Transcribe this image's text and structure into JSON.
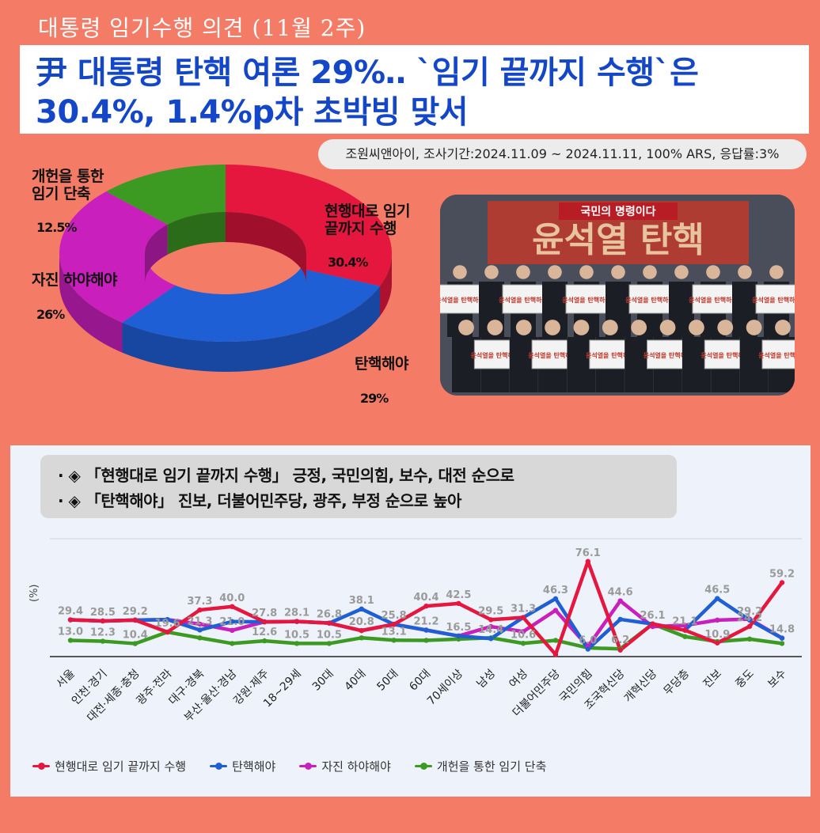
{
  "header": {
    "title": "대통령 임기수행 의견 (11월 2주)"
  },
  "headline": {
    "text": "尹 대통령 탄핵 여론 29%‥ `임기 끝까지 수행`은 30.4%, 1.4%p차 초박빙 맞서"
  },
  "source": {
    "text": "조원씨앤아이, 조사기간:2024.11.09 ~ 2024.11.11, 100% ARS, 응답률:3%"
  },
  "notes": [
    "· ◈ 「현행대로 임기 끝까지 수행」 긍정, 국민의힘, 보수, 대전 순으로",
    "· ◈ 「탄핵해야」 진보, 더불어민주당, 광주, 부정 순으로 높아"
  ],
  "photo": {
    "banner": "국민의 명령이다",
    "backdrop": "윤석열 탄핵",
    "placard": "윤석열을 탄핵하자"
  },
  "pie_chart": {
    "type": "pie",
    "slices": [
      {
        "label": "현행대로 임기 끝까지 수행",
        "display_label": "현행대로 임기\n끝까지 수행",
        "value": 30.4,
        "display": "30.4%",
        "color": "#e5173f"
      },
      {
        "label": "탄핵해야",
        "display_label": "탄핵해야",
        "value": 29,
        "display": "29%",
        "color": "#1f5fd6"
      },
      {
        "label": "자진 하야해야",
        "display_label": "자진 하야해야",
        "value": 26,
        "display": "26%",
        "color": "#c81fbd"
      },
      {
        "label": "개헌을 통한 임기 단축",
        "display_label": "개헌을 통한\n임기 단축",
        "value": 12.5,
        "display": "12.5%",
        "color": "#3c9a23"
      }
    ]
  },
  "chart_data": {
    "type": "line",
    "ylabel": "(%)",
    "categories": [
      "서울",
      "인천·경기",
      "대전·세종·충청",
      "광주·전라",
      "대구·경북",
      "부산·울산·경남",
      "강원·제주",
      "18~29세",
      "30대",
      "40대",
      "50대",
      "60대",
      "70세이상",
      "남성",
      "여성",
      "더불어민주당",
      "국민의힘",
      "조국혁신당",
      "개혁신당",
      "무당층",
      "진보",
      "중도",
      "보수"
    ],
    "series": [
      {
        "name": "현행대로 임기 끝까지 수행",
        "color": "#e5173f",
        "values": [
          29.4,
          28.5,
          29.2,
          19.6,
          37.3,
          40.0,
          27.8,
          28.1,
          26.8,
          20.8,
          25.8,
          40.4,
          42.5,
          29.5,
          31.3,
          1.7,
          76.1,
          5.2,
          26.1,
          21.1,
          10.9,
          24.2,
          59.2
        ],
        "shown": [
          29.4,
          28.5,
          29.2,
          19.6,
          37.3,
          40.0,
          27.8,
          28.1,
          26.8,
          null,
          25.8,
          40.4,
          42.5,
          29.5,
          31.3,
          null,
          76.1,
          null,
          26.1,
          21.1,
          10.9,
          24.2,
          59.2
        ]
      },
      {
        "name": "탄핵해야",
        "color": "#1f5fd6",
        "values": [
          29.4,
          28.5,
          29.2,
          29.6,
          21.3,
          28.0,
          27.8,
          28.1,
          26.8,
          38.1,
          25.8,
          21.2,
          16.5,
          14.4,
          31.3,
          46.3,
          6.0,
          29.8,
          26.1,
          21.1,
          46.5,
          29.2,
          14.8
        ],
        "shown": [
          null,
          null,
          null,
          null,
          21.3,
          null,
          null,
          null,
          null,
          38.1,
          null,
          21.2,
          16.5,
          14.4,
          null,
          46.3,
          6.0,
          null,
          null,
          null,
          46.5,
          29.2,
          14.8
        ]
      },
      {
        "name": "자진 하야해야",
        "color": "#c81fbd",
        "values": [
          29.4,
          28.5,
          29.2,
          29.6,
          26.0,
          21.0,
          27.8,
          28.1,
          26.8,
          20.8,
          25.8,
          21.2,
          16.5,
          24.0,
          20.0,
          37.0,
          8.0,
          44.6,
          24.0,
          25.0,
          29.2,
          30.0,
          14.8
        ],
        "shown": [
          null,
          null,
          null,
          null,
          null,
          21.0,
          null,
          null,
          null,
          20.8,
          null,
          null,
          null,
          null,
          null,
          null,
          null,
          44.6,
          null,
          null,
          null,
          null,
          null
        ]
      },
      {
        "name": "개헌을 통한 임기 단축",
        "color": "#3c9a23",
        "values": [
          13.0,
          12.3,
          10.4,
          19.6,
          15.0,
          10.5,
          12.6,
          10.5,
          10.5,
          15.0,
          13.1,
          13.0,
          14.0,
          15.0,
          10.6,
          13.0,
          7.0,
          6.2,
          26.1,
          16.0,
          12.0,
          14.0,
          10.5
        ],
        "shown": [
          13.0,
          12.3,
          10.4,
          null,
          null,
          null,
          12.6,
          10.5,
          10.5,
          null,
          13.1,
          null,
          null,
          null,
          10.6,
          null,
          null,
          6.2,
          null,
          null,
          null,
          null,
          null
        ]
      }
    ]
  },
  "legend_entries": [
    "현행대로 임기 끝까지 수행",
    "탄핵해야",
    "자진 하야해야",
    "개헌을 통한 임기 단축"
  ]
}
